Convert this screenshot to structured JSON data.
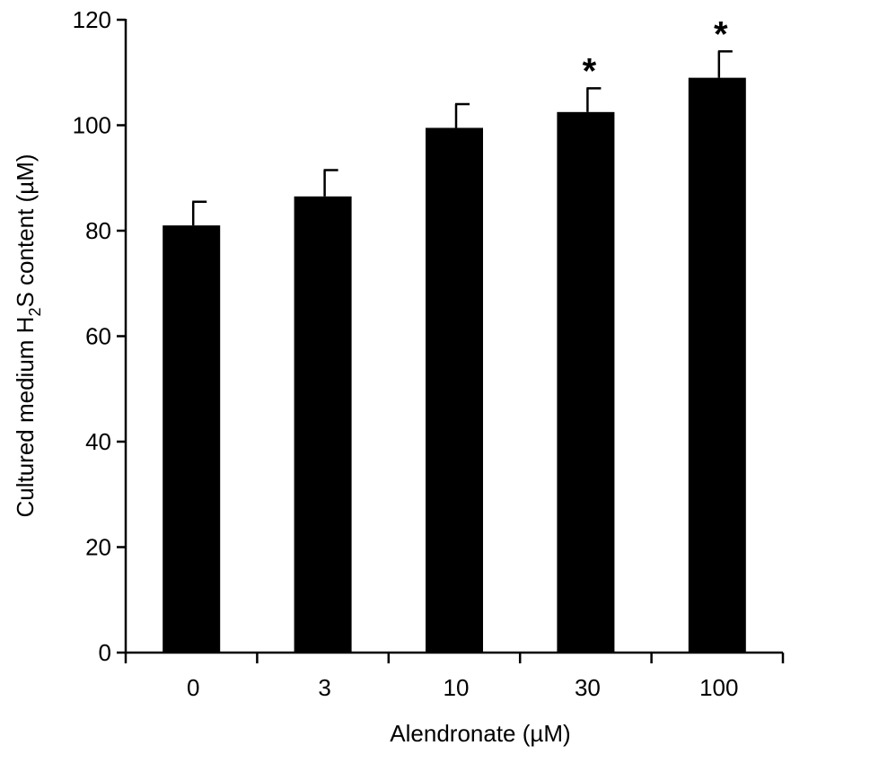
{
  "chart_data": {
    "type": "bar",
    "title": "",
    "xlabel": "Alendronate (µM)",
    "ylabel": {
      "prefix": "Cultured medium H",
      "subscript": "2",
      "suffix": "S content (µM)"
    },
    "categories": [
      "0",
      "3",
      "10",
      "30",
      "100"
    ],
    "series": [
      {
        "values": [
          81,
          86.5,
          99.5,
          102.5,
          109
        ],
        "errors": [
          4.5,
          5,
          4.5,
          4.5,
          5
        ]
      }
    ],
    "significance": [
      "",
      "",
      "",
      "*",
      "*"
    ],
    "ylim": [
      0,
      120
    ],
    "yticks": [
      "0",
      "20",
      "40",
      "60",
      "80",
      "100",
      "120"
    ],
    "bar_color": "#000000",
    "grid": false,
    "legend": "none"
  }
}
